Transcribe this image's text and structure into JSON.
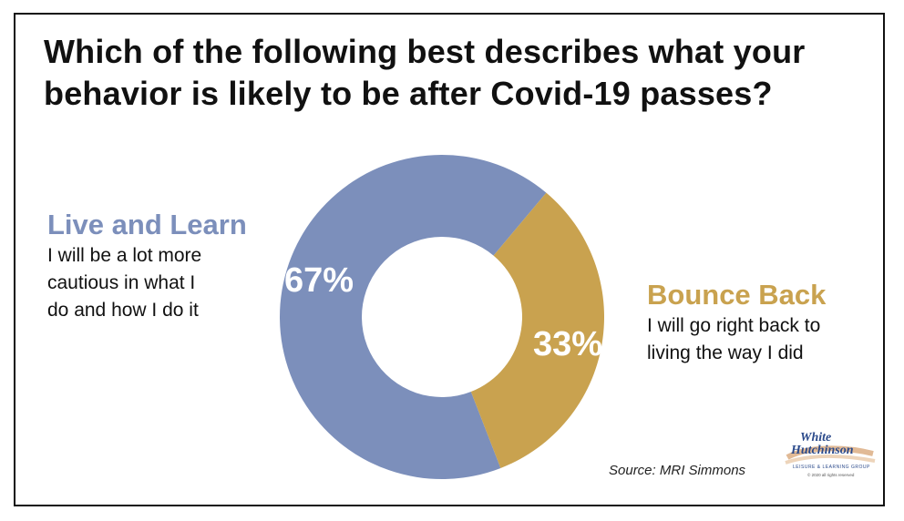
{
  "title": "Which of the following best describes what your behavior is likely to be after Covid-19 passes?",
  "chart_data": {
    "type": "pie",
    "donut": true,
    "title": "Which of the following best describes what your behavior is likely to be after Covid-19 passes?",
    "slices": [
      {
        "name": "Live and Learn",
        "description": "I will be a lot more cautious in what I do and how I do it",
        "value": 67,
        "label": "67%",
        "color": "#7c8fbb"
      },
      {
        "name": "Bounce Back",
        "description": "I will go right back to living the way I did",
        "value": 33,
        "label": "33%",
        "color": "#c9a24f"
      }
    ]
  },
  "labels": {
    "left": {
      "heading": "Live and Learn",
      "line1": "I will be a lot more",
      "line2": "cautious in what I",
      "line3": "do and how I do it"
    },
    "right": {
      "heading": "Bounce Back",
      "line1": "I will go right back to",
      "line2": "living the way I did"
    }
  },
  "source": "Source: MRI Simmons",
  "logo": {
    "line1": "White",
    "line2": "Hutchinson",
    "tagline": "LEISURE & LEARNING GROUP",
    "copyright": "© 2020 all rights reserved"
  },
  "colors": {
    "live_and_learn": "#7c8fbb",
    "bounce_back": "#c9a24f",
    "title": "#111111"
  }
}
